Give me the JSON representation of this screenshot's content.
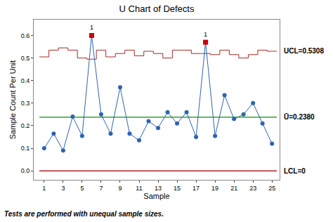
{
  "chart_data": {
    "type": "line",
    "title": "U Chart of Defects",
    "x_label": "Sample",
    "y_label": "Sample Count Per Unit",
    "x": [
      1,
      2,
      3,
      4,
      5,
      6,
      7,
      8,
      9,
      10,
      11,
      12,
      13,
      14,
      15,
      16,
      17,
      18,
      19,
      20,
      21,
      22,
      23,
      24,
      25
    ],
    "values": [
      0.1,
      0.165,
      0.09,
      0.24,
      0.155,
      0.6,
      0.25,
      0.165,
      0.37,
      0.165,
      0.135,
      0.22,
      0.19,
      0.26,
      0.21,
      0.26,
      0.15,
      0.57,
      0.155,
      0.335,
      0.23,
      0.25,
      0.3,
      0.21,
      0.12
    ],
    "color": "#2e64b0",
    "marker": "circle",
    "flags": {
      "x": [
        6,
        18
      ],
      "label": "1",
      "color": "#cc0000",
      "marker": "square"
    },
    "ucl": {
      "values": [
        0.505,
        0.535,
        0.545,
        0.535,
        0.5,
        0.495,
        0.535,
        0.505,
        0.52,
        0.535,
        0.51,
        0.53,
        0.52,
        0.5,
        0.535,
        0.535,
        0.52,
        0.52,
        0.515,
        0.535,
        0.515,
        0.5,
        0.515,
        0.535,
        0.53
      ],
      "value": 0.5308,
      "label": "UCL=0.5308",
      "color": "#a52a2a"
    },
    "center_line": {
      "value": 0.238,
      "label": "Ū=0.2380",
      "color": "#33a033"
    },
    "lcl": {
      "value": 0,
      "label": "LCL=0",
      "color": "#b22222"
    },
    "xlim": [
      -0.1,
      25.8
    ],
    "xticks": [
      1,
      3,
      5,
      7,
      9,
      11,
      13,
      15,
      17,
      19,
      21,
      23,
      25
    ],
    "ylim": [
      -0.04,
      0.67
    ],
    "yticks": [
      {
        "value": 0,
        "label": "0.0"
      },
      {
        "value": 0.1,
        "label": "0.1"
      },
      {
        "value": 0.2,
        "label": "0.2"
      },
      {
        "value": 0.3,
        "label": "0.3"
      },
      {
        "value": 0.4,
        "label": "0.4"
      },
      {
        "value": 0.5,
        "label": "0.5"
      },
      {
        "value": 0.6,
        "label": "0.6"
      }
    ],
    "grid": false,
    "footnote": "Tests are performed with unequal sample sizes."
  }
}
